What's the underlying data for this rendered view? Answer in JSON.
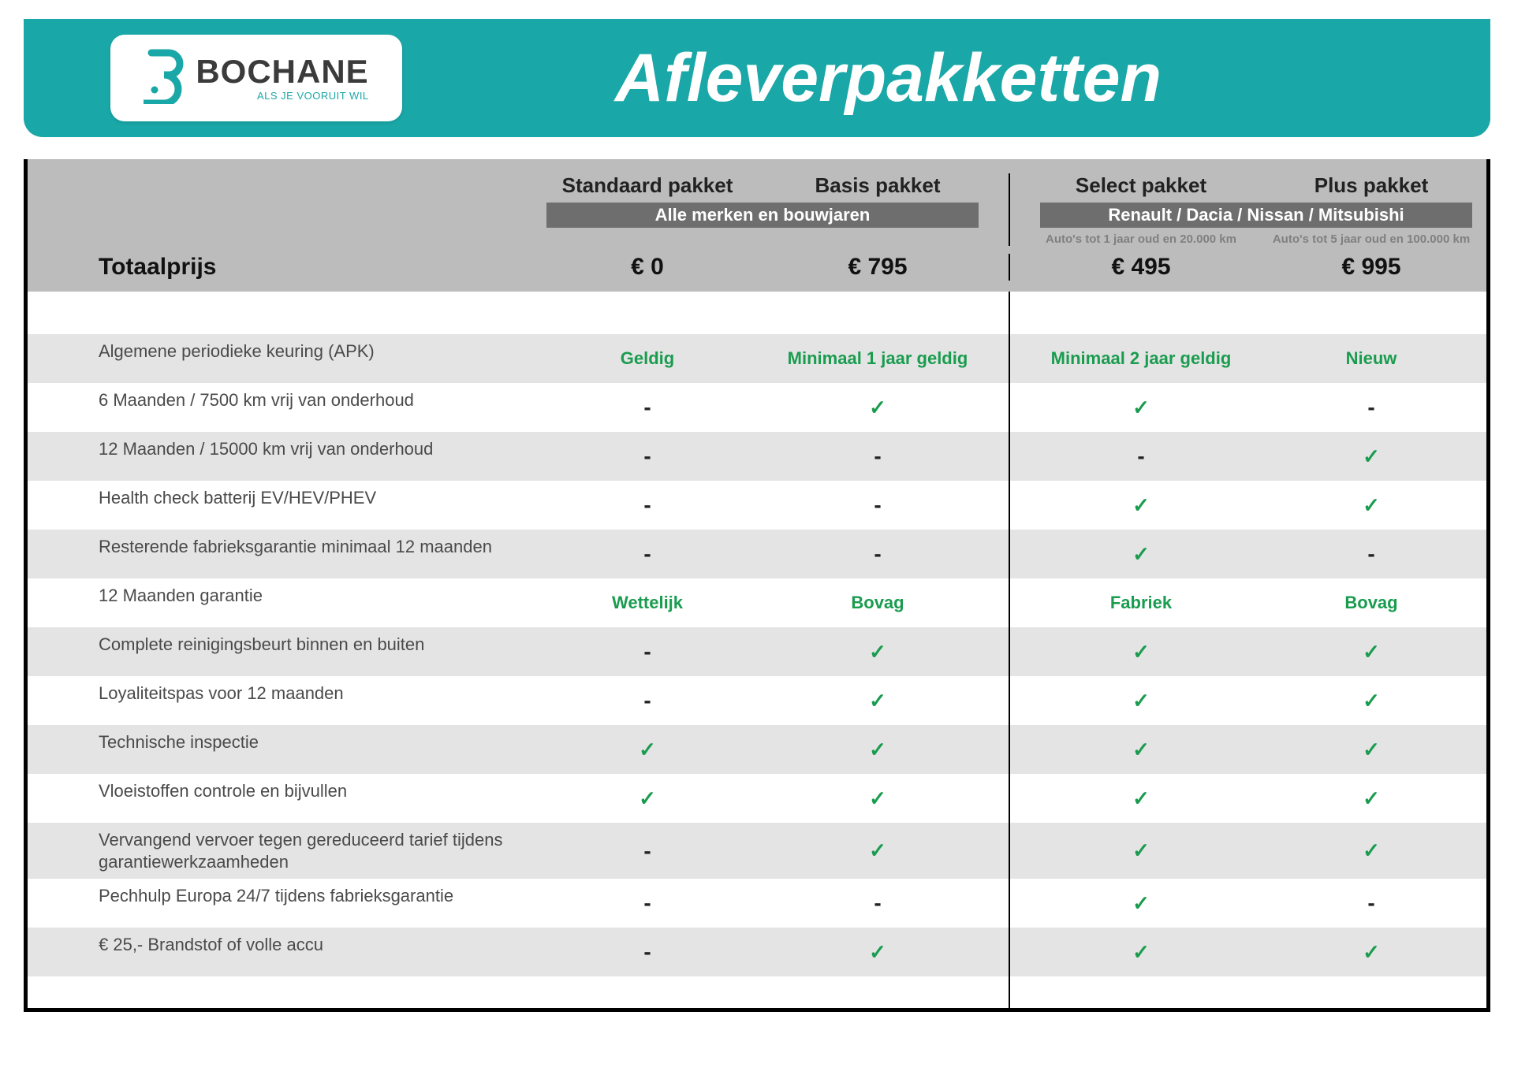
{
  "brand": {
    "logo_name": "BOCHANE",
    "logo_tagline": "ALS JE VOORUIT WIL"
  },
  "page_title": "Afleverpakketten",
  "totalprice_label": "Totaalprijs",
  "columns": [
    {
      "name": "Standaard pakket",
      "price": "€ 0",
      "group": 0
    },
    {
      "name": "Basis pakket",
      "price": "€ 795",
      "group": 0
    },
    {
      "name": "Select pakket",
      "price": "€ 495",
      "group": 1,
      "note": "Auto's tot 1 jaar oud en 20.000 km"
    },
    {
      "name": "Plus pakket",
      "price": "€ 995",
      "group": 1,
      "note": "Auto's tot 5 jaar oud en 100.000 km"
    }
  ],
  "group_labels": [
    "Alle merken en bouwjaren",
    "Renault / Dacia / Nissan / Mitsubishi"
  ],
  "features": [
    {
      "label": "Algemene periodieke keuring (APK)",
      "cells": [
        {
          "type": "text",
          "value": "Geldig"
        },
        {
          "type": "text",
          "value": "Minimaal 1 jaar geldig"
        },
        {
          "type": "text",
          "value": "Minimaal 2 jaar geldig"
        },
        {
          "type": "text",
          "value": "Nieuw"
        }
      ]
    },
    {
      "label": "6 Maanden / 7500 km vrij van onderhoud",
      "cells": [
        {
          "type": "dash"
        },
        {
          "type": "check"
        },
        {
          "type": "check"
        },
        {
          "type": "dash"
        }
      ]
    },
    {
      "label": "12 Maanden / 15000 km vrij van onderhoud",
      "cells": [
        {
          "type": "dash"
        },
        {
          "type": "dash"
        },
        {
          "type": "dash"
        },
        {
          "type": "check"
        }
      ]
    },
    {
      "label": "Health check batterij EV/HEV/PHEV",
      "cells": [
        {
          "type": "dash"
        },
        {
          "type": "dash"
        },
        {
          "type": "check"
        },
        {
          "type": "check"
        }
      ]
    },
    {
      "label": "Resterende fabrieksgarantie minimaal 12 maanden",
      "cells": [
        {
          "type": "dash"
        },
        {
          "type": "dash"
        },
        {
          "type": "check"
        },
        {
          "type": "dash"
        }
      ]
    },
    {
      "label": "12 Maanden  garantie",
      "cells": [
        {
          "type": "text",
          "value": "Wettelijk"
        },
        {
          "type": "text",
          "value": "Bovag"
        },
        {
          "type": "text",
          "value": "Fabriek"
        },
        {
          "type": "text",
          "value": "Bovag"
        }
      ]
    },
    {
      "label": "Complete reinigingsbeurt binnen en buiten",
      "cells": [
        {
          "type": "dash"
        },
        {
          "type": "check"
        },
        {
          "type": "check"
        },
        {
          "type": "check"
        }
      ]
    },
    {
      "label": "Loyaliteitspas voor 12 maanden",
      "cells": [
        {
          "type": "dash"
        },
        {
          "type": "check"
        },
        {
          "type": "check"
        },
        {
          "type": "check"
        }
      ]
    },
    {
      "label": "Technische inspectie",
      "cells": [
        {
          "type": "check"
        },
        {
          "type": "check"
        },
        {
          "type": "check"
        },
        {
          "type": "check"
        }
      ]
    },
    {
      "label": "Vloeistoffen controle en bijvullen",
      "cells": [
        {
          "type": "check"
        },
        {
          "type": "check"
        },
        {
          "type": "check"
        },
        {
          "type": "check"
        }
      ]
    },
    {
      "label": "Vervangend vervoer tegen gereduceerd tarief tijdens garantiewerkzaamheden",
      "cells": [
        {
          "type": "dash"
        },
        {
          "type": "check"
        },
        {
          "type": "check"
        },
        {
          "type": "check"
        }
      ]
    },
    {
      "label": "Pechhulp Europa 24/7 tijdens fabrieksgarantie",
      "cells": [
        {
          "type": "dash"
        },
        {
          "type": "dash"
        },
        {
          "type": "check"
        },
        {
          "type": "dash"
        }
      ]
    },
    {
      "label": "€ 25,- Brandstof of  volle accu",
      "cells": [
        {
          "type": "dash"
        },
        {
          "type": "check"
        },
        {
          "type": "check"
        },
        {
          "type": "check"
        }
      ]
    }
  ],
  "styling": {
    "accent_color": "#1aa7a7",
    "header_grey": "#bcbcbc",
    "subbar_grey": "#6e6e6e",
    "row_alt_bg": "#e4e4e4",
    "check_color": "#1a9c4f",
    "text_color": "#4a4a4a",
    "border_color": "#000000",
    "alt_row_indices": [
      0,
      2,
      4,
      6,
      8,
      10,
      12
    ]
  }
}
